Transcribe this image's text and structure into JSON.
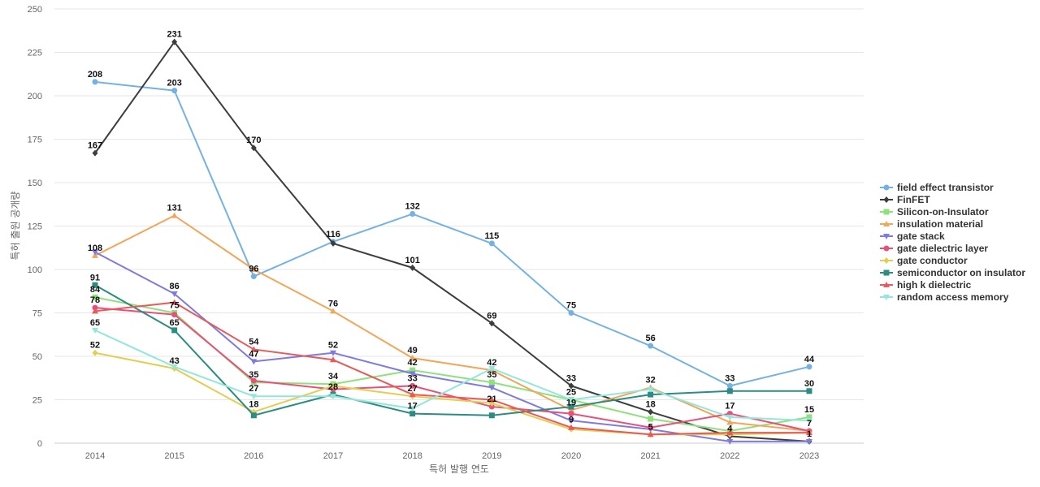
{
  "chart_data": {
    "type": "line",
    "xlabel": "특허 발행 연도",
    "ylabel": "특허 출원 공개량",
    "x": [
      "2014",
      "2015",
      "2016",
      "2017",
      "2018",
      "2019",
      "2020",
      "2021",
      "2022",
      "2023"
    ],
    "ylim": [
      0,
      250
    ],
    "yticks": [
      0,
      25,
      50,
      75,
      100,
      125,
      150,
      175,
      200,
      225,
      250
    ],
    "grid": true,
    "legend_position": "right",
    "series": [
      {
        "name": "field effect transistor",
        "color": "#74b2e3",
        "marker": "circle",
        "values": [
          208,
          203,
          96,
          116,
          132,
          115,
          75,
          56,
          33,
          44
        ],
        "labels": [
          true,
          true,
          true,
          true,
          true,
          true,
          true,
          true,
          true,
          true
        ]
      },
      {
        "name": "FinFET",
        "color": "#3d3d3d",
        "marker": "diamond",
        "values": [
          167,
          231,
          170,
          115,
          101,
          69,
          33,
          18,
          4,
          1
        ],
        "labels": [
          true,
          true,
          true,
          false,
          true,
          true,
          true,
          true,
          true,
          true
        ]
      },
      {
        "name": "Silicon-on-Insulator",
        "color": "#8ee27a",
        "marker": "square",
        "values": [
          84,
          75,
          35,
          34,
          42,
          35,
          25,
          14,
          7,
          15
        ],
        "labels": [
          true,
          true,
          true,
          true,
          true,
          true,
          true,
          false,
          false,
          true
        ]
      },
      {
        "name": "insulation material",
        "color": "#f2a65a",
        "marker": "triangle-up",
        "values": [
          108,
          131,
          100,
          76,
          49,
          42,
          19,
          32,
          12,
          7
        ],
        "labels": [
          true,
          true,
          false,
          true,
          true,
          true,
          true,
          true,
          false,
          true
        ]
      },
      {
        "name": "gate stack",
        "color": "#7f7ae0",
        "marker": "triangle-down",
        "values": [
          110,
          86,
          47,
          52,
          40,
          32,
          13,
          8,
          1,
          1
        ],
        "labels": [
          false,
          true,
          true,
          true,
          false,
          false,
          false,
          false,
          false,
          false
        ]
      },
      {
        "name": "gate dielectric layer",
        "color": "#e8507a",
        "marker": "circle",
        "values": [
          78,
          74,
          36,
          31,
          33,
          21,
          17,
          9,
          17,
          7
        ],
        "labels": [
          true,
          false,
          false,
          false,
          true,
          true,
          false,
          false,
          true,
          false
        ]
      },
      {
        "name": "gate conductor",
        "color": "#e2cf52",
        "marker": "diamond",
        "values": [
          52,
          43,
          18,
          33,
          27,
          23,
          8,
          5,
          5,
          6
        ],
        "labels": [
          true,
          true,
          true,
          false,
          true,
          false,
          false,
          false,
          false,
          false
        ]
      },
      {
        "name": "semiconductor on insulator",
        "color": "#2a8c82",
        "marker": "square",
        "values": [
          91,
          65,
          16,
          28,
          17,
          16,
          21,
          28,
          30,
          30
        ],
        "labels": [
          true,
          true,
          false,
          true,
          true,
          false,
          false,
          false,
          false,
          true
        ]
      },
      {
        "name": "high k dielectric",
        "color": "#e85a5a",
        "marker": "triangle-up",
        "values": [
          76,
          81,
          54,
          48,
          28,
          25,
          9,
          5,
          6,
          6
        ],
        "labels": [
          false,
          false,
          true,
          false,
          false,
          false,
          true,
          true,
          false,
          false
        ]
      },
      {
        "name": "random access memory",
        "color": "#92e6da",
        "marker": "triangle-down",
        "values": [
          65,
          44,
          27,
          27,
          20,
          43,
          25,
          31,
          15,
          13
        ],
        "labels": [
          true,
          false,
          true,
          false,
          false,
          false,
          false,
          false,
          false,
          false
        ]
      }
    ]
  }
}
